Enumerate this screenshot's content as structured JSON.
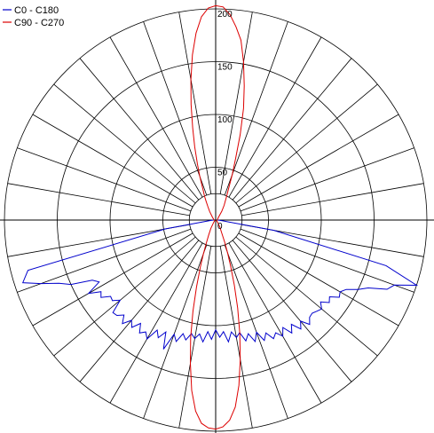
{
  "chart_data": {
    "type": "polar-line",
    "title": "",
    "radial_axis": {
      "max": 200,
      "labeled_ticks": [
        "0",
        "50",
        "100",
        "150",
        "200"
      ],
      "rings": [
        50,
        100,
        150,
        200
      ],
      "inner_circle": 25
    },
    "angular_axis": {
      "spoke_step_deg": 10,
      "zero_direction": "down"
    },
    "legend": {
      "placement": "top-left",
      "entries": [
        "C0 - C180",
        "C90 - C270"
      ]
    },
    "series": [
      {
        "name": "C0 - C180",
        "color": "#0000cc",
        "angle_deg": [
          -90,
          -85,
          -80,
          -75,
          -72,
          -70,
          -68,
          -66,
          -64,
          -62,
          -60,
          -58,
          -56,
          -54,
          -52,
          -50,
          -48,
          -46,
          -44,
          -42,
          -40,
          -38,
          -36,
          -34,
          -32,
          -30,
          -28,
          -26,
          -24,
          -22,
          -20,
          -18,
          -16,
          -14,
          -12,
          -10,
          -8,
          -6,
          -4,
          -2,
          0,
          2,
          4,
          6,
          8,
          10,
          12,
          14,
          16,
          18,
          20,
          22,
          24,
          26,
          28,
          30,
          32,
          34,
          36,
          38,
          40,
          42,
          44,
          46,
          48,
          50,
          52,
          54,
          56,
          58,
          60,
          62,
          64,
          66,
          68,
          70,
          72,
          75,
          80,
          85,
          90
        ],
        "radius": [
          2,
          5,
          48,
          184,
          192,
          176,
          160,
          150,
          130,
          125,
          139,
          128,
          131,
          123,
          124,
          118,
          131,
          130,
          125,
          132,
          124,
          129,
          121,
          129,
          125,
          130,
          118,
          124,
          116,
          132,
          115,
          121,
          112,
          117,
          110,
          114,
          109,
          116,
          106,
          113,
          104,
          111,
          106,
          116,
          107,
          113,
          109,
          118,
          112,
          121,
          113,
          123,
          117,
          125,
          121,
          127,
          120,
          129,
          122,
          131,
          125,
          133,
          128,
          127,
          129,
          131,
          126,
          133,
          130,
          138,
          136,
          140,
          150,
          158,
          175,
          180,
          200,
          167,
          56,
          5,
          2
        ]
      },
      {
        "name": "C90 - C270",
        "color": "#dd0000",
        "angle_deg": [
          -90,
          -60,
          -40,
          -30,
          -25,
          -22,
          -20,
          -18,
          -16,
          -14,
          -12,
          -10,
          -8,
          -6,
          -4,
          -2,
          0,
          2,
          4,
          6,
          8,
          10,
          12,
          14,
          16,
          18,
          20,
          22,
          25,
          30,
          40,
          60,
          90
        ],
        "radius": [
          1,
          1,
          3,
          9,
          16,
          24,
          34,
          47,
          66,
          89,
          114,
          138,
          163,
          182,
          193,
          197,
          198,
          196,
          190,
          178,
          158,
          134,
          110,
          86,
          64,
          46,
          33,
          23,
          14,
          8,
          3,
          1,
          1
        ]
      },
      {
        "name": "C90 - C270",
        "color": "#dd0000",
        "angle_deg": [
          90,
          110,
          130,
          145,
          150,
          153,
          155,
          157,
          159,
          160,
          162,
          164,
          166,
          168,
          170,
          172,
          174,
          176,
          178,
          180,
          182,
          184,
          186,
          188,
          190,
          192,
          194,
          196,
          198,
          200,
          201,
          203,
          205,
          207,
          210,
          215,
          230,
          250,
          270
        ],
        "radius": [
          2,
          2,
          3,
          10,
          16,
          20,
          24,
          30,
          39,
          46,
          61,
          84,
          109,
          130,
          152,
          172,
          184,
          195,
          202,
          203,
          201,
          193,
          178,
          158,
          135,
          112,
          90,
          72,
          56,
          44,
          38,
          30,
          25,
          20,
          15,
          10,
          4,
          2,
          2
        ]
      }
    ]
  }
}
